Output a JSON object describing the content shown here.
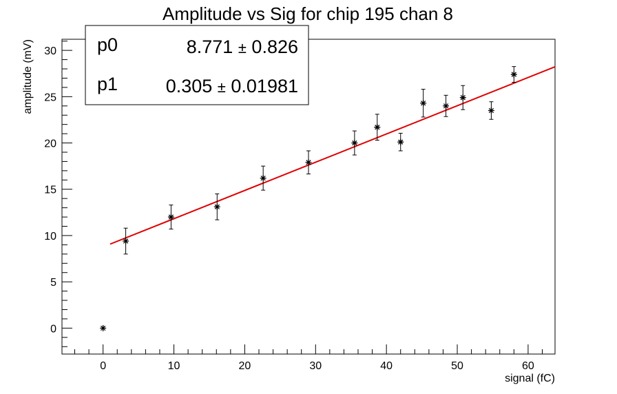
{
  "chart_data": {
    "type": "scatter",
    "title": "Amplitude vs Sig for chip 195 chan 8",
    "xlabel": "signal (fC)",
    "ylabel": "amplitude (mV)",
    "xlim": [
      -5.8,
      63.8
    ],
    "ylim": [
      -2.8,
      31.2
    ],
    "x_ticks": [
      0,
      10,
      20,
      30,
      40,
      50,
      60
    ],
    "y_ticks": [
      0,
      5,
      10,
      15,
      20,
      25,
      30
    ],
    "grid": false,
    "series": [
      {
        "marker": "asterisk",
        "color": "#000000",
        "points": [
          {
            "x": 0.0,
            "y": 0.0,
            "err": 0.0
          },
          {
            "x": 3.2,
            "y": 9.4,
            "err": 1.4
          },
          {
            "x": 9.6,
            "y": 12.0,
            "err": 1.3
          },
          {
            "x": 16.1,
            "y": 13.1,
            "err": 1.4
          },
          {
            "x": 22.6,
            "y": 16.2,
            "err": 1.3
          },
          {
            "x": 29.0,
            "y": 17.9,
            "err": 1.25
          },
          {
            "x": 35.5,
            "y": 20.0,
            "err": 1.3
          },
          {
            "x": 38.7,
            "y": 21.7,
            "err": 1.4
          },
          {
            "x": 42.0,
            "y": 20.1,
            "err": 0.95
          },
          {
            "x": 45.2,
            "y": 24.3,
            "err": 1.5
          },
          {
            "x": 48.4,
            "y": 24.0,
            "err": 1.15
          },
          {
            "x": 50.8,
            "y": 24.9,
            "err": 1.3
          },
          {
            "x": 54.8,
            "y": 23.5,
            "err": 0.95
          },
          {
            "x": 58.0,
            "y": 27.4,
            "err": 0.85
          }
        ]
      }
    ],
    "fit": {
      "type": "linear",
      "color": "#e00000",
      "x_range": [
        1.0,
        63.8
      ],
      "p0": 8.771,
      "p1": 0.305
    },
    "stats_box": {
      "placement": "top-left",
      "rows": [
        {
          "name": "p0",
          "value": "8.771",
          "error": "0.826"
        },
        {
          "name": "p1",
          "value": "0.305",
          "error": "0.01981"
        }
      ],
      "pm_symbol": "±"
    }
  }
}
